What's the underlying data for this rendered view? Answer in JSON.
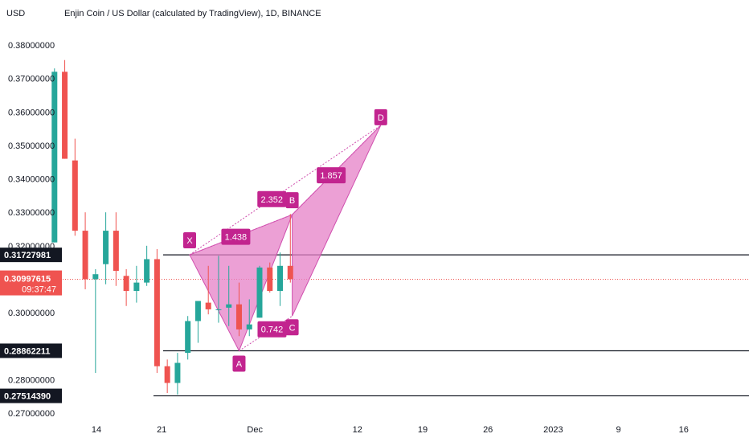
{
  "header": {
    "currency": "USD",
    "title": "Enjin Coin / US Dollar (calculated by TradingView), 1D, BINANCE"
  },
  "colors": {
    "up": "#26a69a",
    "down": "#ef5350",
    "pattern_fill": "#e580c7",
    "pattern_line": "#d04fae",
    "label_bg": "#c2248f",
    "current_price_bg": "#ef5350",
    "level_bg": "#131722",
    "current_price_line": "#ef5350"
  },
  "chart_data": {
    "type": "candlestick",
    "ylim": [
      0.265,
      0.3875
    ],
    "y_ticks": [
      "0.38000000",
      "0.37000000",
      "0.36000000",
      "0.35000000",
      "0.34000000",
      "0.33000000",
      "0.32000000",
      "0.30000000",
      "0.28000000",
      "0.27000000"
    ],
    "x_ticks": [
      {
        "label": "14",
        "day": 14
      },
      {
        "label": "21",
        "day": 21
      },
      {
        "label": "Dec",
        "day": 31
      },
      {
        "label": "12",
        "day": 42
      },
      {
        "label": "19",
        "day": 49
      },
      {
        "label": "26",
        "day": 56
      },
      {
        "label": "2023",
        "day": 63
      },
      {
        "label": "9",
        "day": 70
      },
      {
        "label": "16",
        "day": 77
      }
    ],
    "candles": [
      {
        "day": 9.5,
        "o": 0.321,
        "h": 0.373,
        "l": 0.321,
        "c": 0.372
      },
      {
        "day": 10.6,
        "o": 0.372,
        "h": 0.3755,
        "l": 0.346,
        "c": 0.346
      },
      {
        "day": 11.7,
        "o": 0.3455,
        "h": 0.352,
        "l": 0.323,
        "c": 0.3245
      },
      {
        "day": 12.8,
        "o": 0.3245,
        "h": 0.33,
        "l": 0.307,
        "c": 0.31
      },
      {
        "day": 13.9,
        "o": 0.31,
        "h": 0.313,
        "l": 0.282,
        "c": 0.3115
      },
      {
        "day": 15.0,
        "o": 0.3145,
        "h": 0.33,
        "l": 0.3085,
        "c": 0.3245
      },
      {
        "day": 16.1,
        "o": 0.3245,
        "h": 0.33,
        "l": 0.308,
        "c": 0.3125
      },
      {
        "day": 17.2,
        "o": 0.311,
        "h": 0.313,
        "l": 0.302,
        "c": 0.3065
      },
      {
        "day": 18.3,
        "o": 0.3065,
        "h": 0.314,
        "l": 0.303,
        "c": 0.309
      },
      {
        "day": 19.4,
        "o": 0.309,
        "h": 0.32,
        "l": 0.308,
        "c": 0.316
      },
      {
        "day": 20.5,
        "o": 0.316,
        "h": 0.319,
        "l": 0.282,
        "c": 0.284
      },
      {
        "day": 21.6,
        "o": 0.284,
        "h": 0.286,
        "l": 0.276,
        "c": 0.279
      },
      {
        "day": 22.7,
        "o": 0.279,
        "h": 0.288,
        "l": 0.2755,
        "c": 0.285
      },
      {
        "day": 23.8,
        "o": 0.288,
        "h": 0.299,
        "l": 0.286,
        "c": 0.2975
      },
      {
        "day": 24.9,
        "o": 0.2975,
        "h": 0.303,
        "l": 0.291,
        "c": 0.3035
      },
      {
        "day": 26.0,
        "o": 0.303,
        "h": 0.314,
        "l": 0.2995,
        "c": 0.301
      },
      {
        "day": 27.1,
        "o": 0.301,
        "h": 0.317,
        "l": 0.297,
        "c": 0.301
      },
      {
        "day": 28.2,
        "o": 0.3015,
        "h": 0.314,
        "l": 0.296,
        "c": 0.3025
      },
      {
        "day": 29.3,
        "o": 0.3025,
        "h": 0.309,
        "l": 0.293,
        "c": 0.295
      },
      {
        "day": 30.4,
        "o": 0.295,
        "h": 0.304,
        "l": 0.293,
        "c": 0.2965
      },
      {
        "day": 31.5,
        "o": 0.2985,
        "h": 0.314,
        "l": 0.2985,
        "c": 0.3135
      },
      {
        "day": 32.6,
        "o": 0.3135,
        "h": 0.315,
        "l": 0.306,
        "c": 0.3065
      },
      {
        "day": 33.7,
        "o": 0.3065,
        "h": 0.318,
        "l": 0.302,
        "c": 0.314
      },
      {
        "day": 34.8,
        "o": 0.314,
        "h": 0.3295,
        "l": 0.309,
        "c": 0.31
      }
    ],
    "harmonic_pattern": {
      "points": [
        {
          "label": "X",
          "day": 24.0,
          "price": 0.3173
        },
        {
          "label": "A",
          "day": 29.3,
          "price": 0.2886
        },
        {
          "label": "B",
          "day": 35.0,
          "price": 0.3293
        },
        {
          "label": "C",
          "day": 35.0,
          "price": 0.299
        },
        {
          "label": "D",
          "day": 44.5,
          "price": 0.356
        }
      ],
      "ratios": [
        {
          "text": "1.438"
        },
        {
          "text": "2.352"
        },
        {
          "text": "0.742"
        },
        {
          "text": "1.857"
        }
      ]
    },
    "levels": [
      {
        "price": 0.31727981,
        "label": "0.31727981"
      },
      {
        "price": 0.28862211,
        "label": "0.28862211"
      },
      {
        "price": 0.2751439,
        "label": "0.27514390"
      }
    ],
    "current_price": {
      "price": 0.30997615,
      "label": "0.30997615",
      "countdown": "09:37:47"
    }
  }
}
